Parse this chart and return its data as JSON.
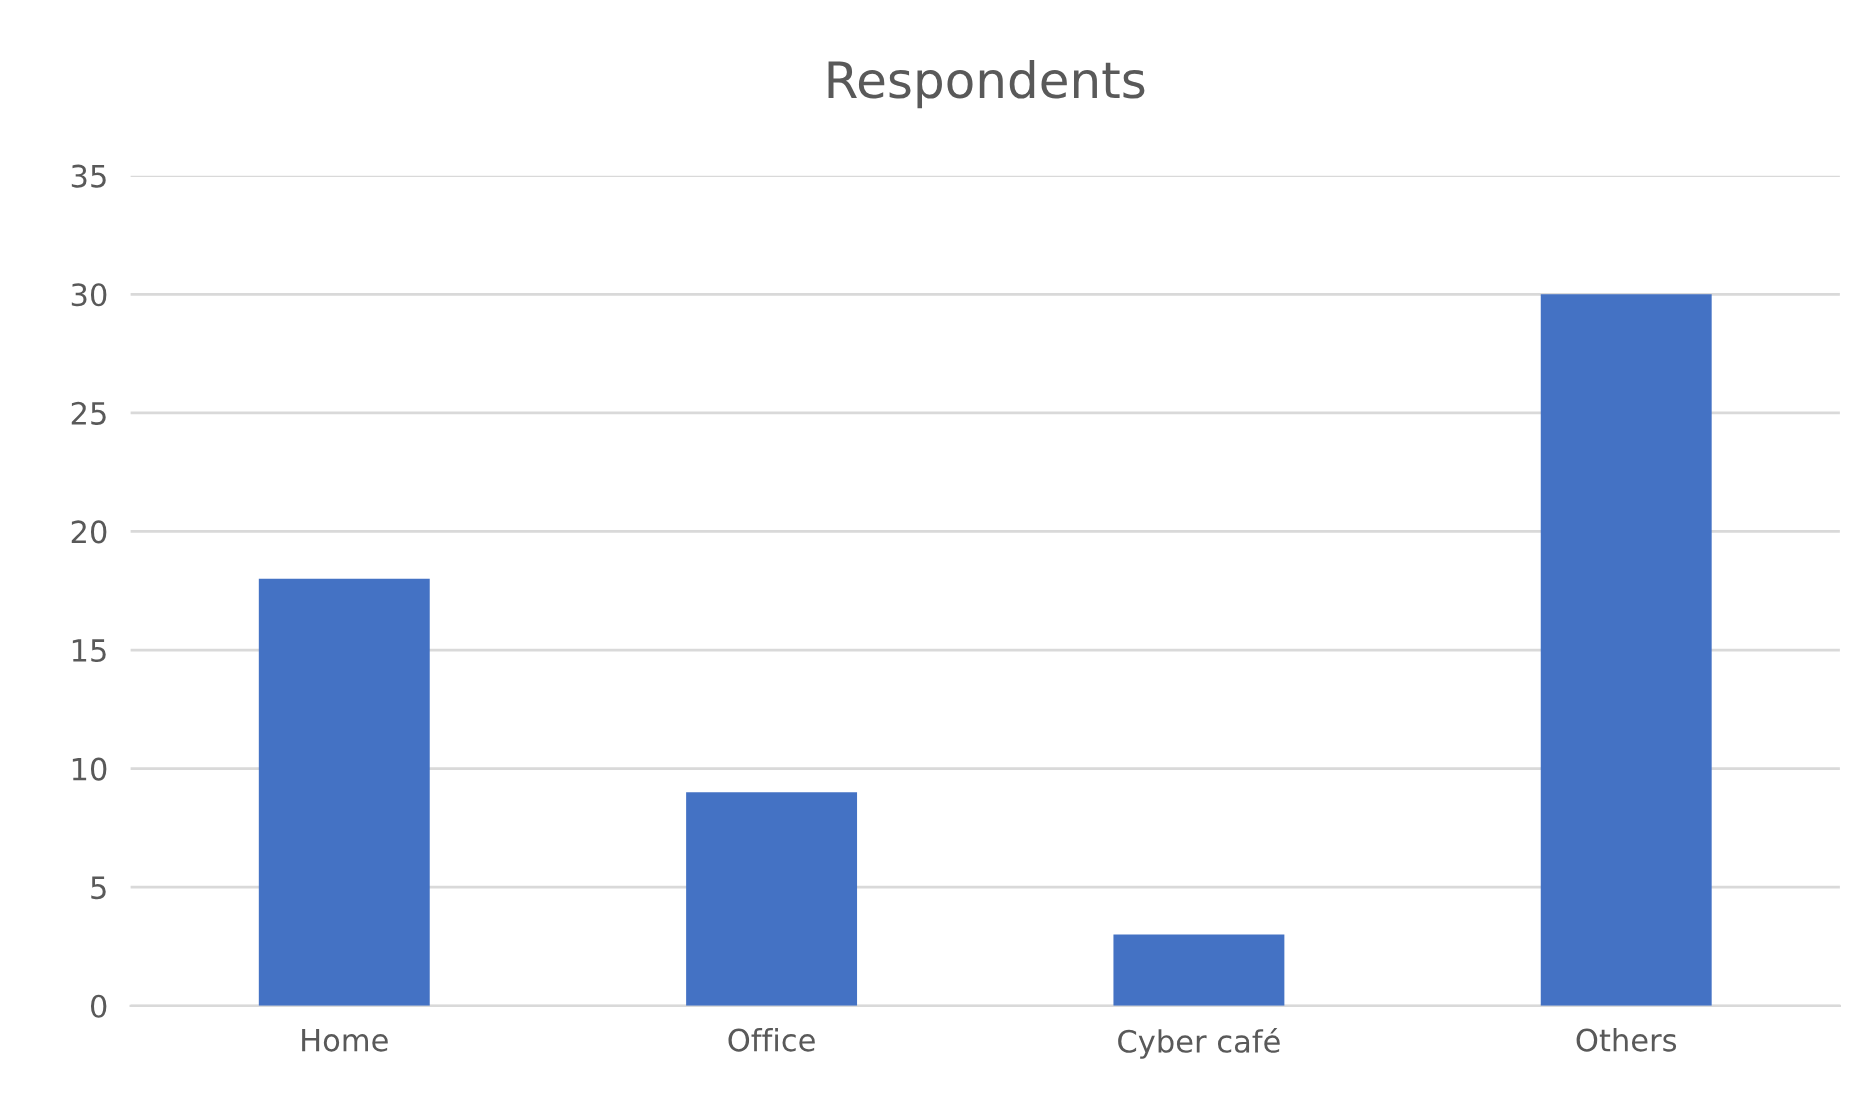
{
  "chart_data": {
    "type": "bar",
    "title": "Respondents",
    "categories": [
      "Home",
      "Office",
      "Cyber café",
      "Others"
    ],
    "values": [
      18,
      9,
      3,
      30
    ],
    "color": "#4472c4",
    "ylim": [
      0,
      35
    ],
    "yticks": [
      0,
      5,
      10,
      15,
      20,
      25,
      30,
      35
    ],
    "grid": "y",
    "legend": false
  }
}
